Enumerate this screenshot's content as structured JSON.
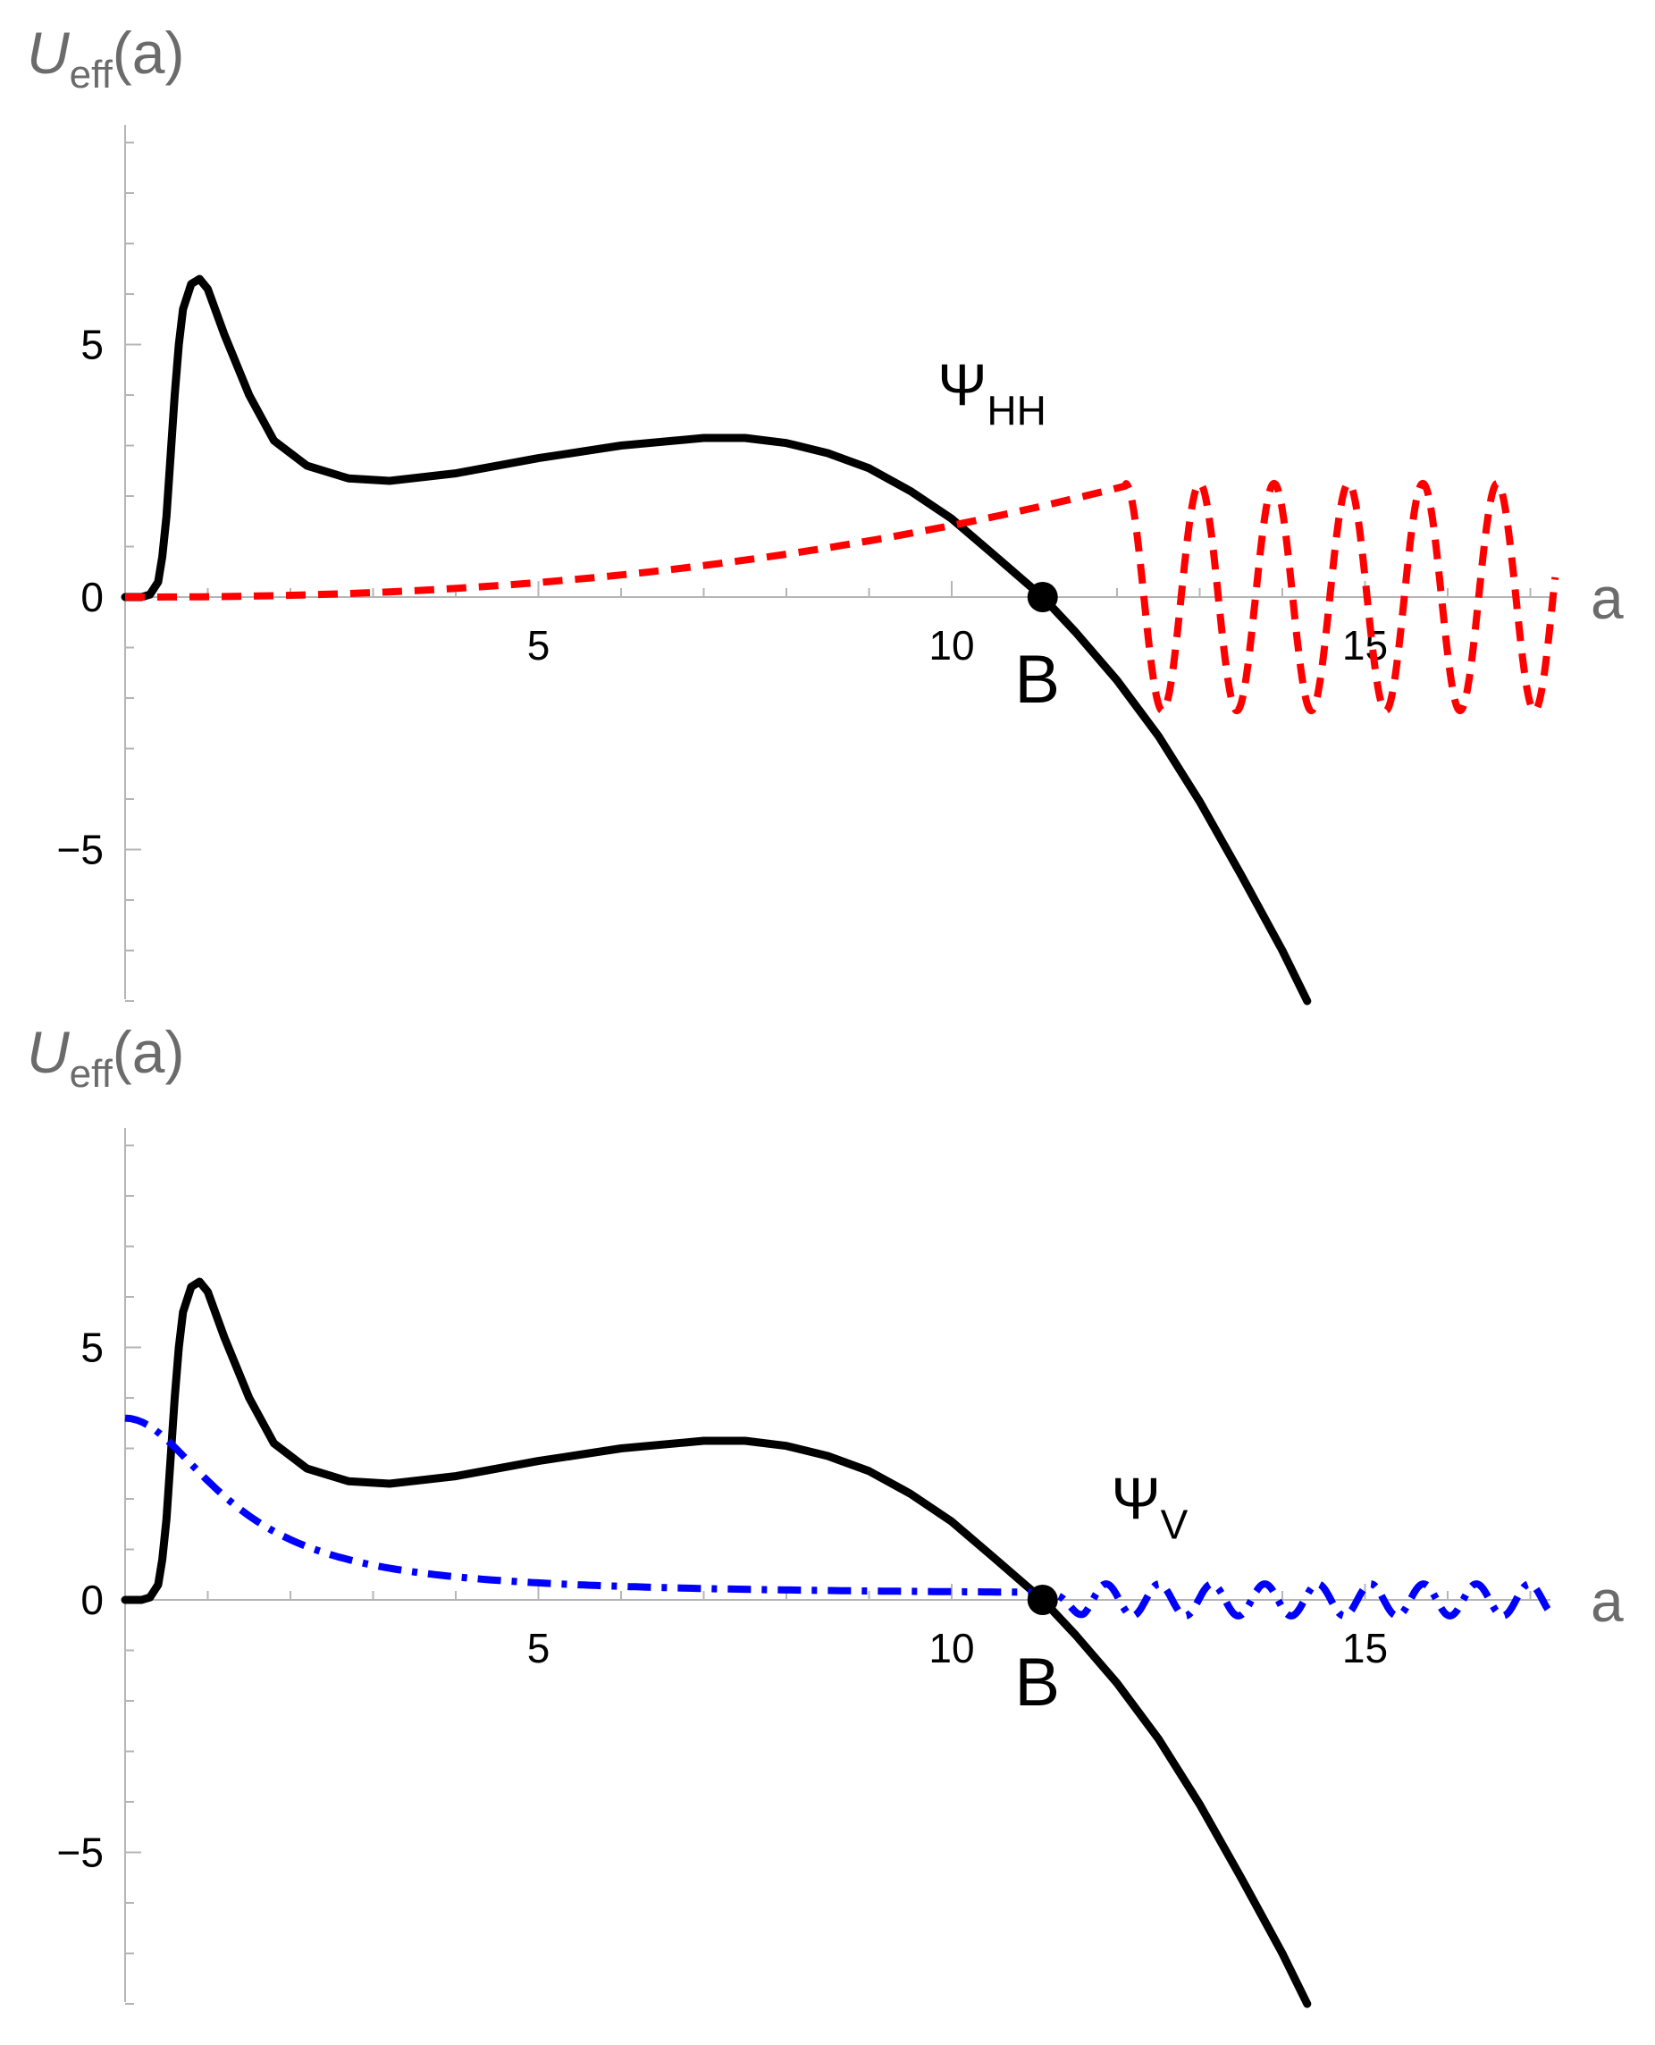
{
  "chart_data": [
    {
      "type": "line",
      "ylabel": {
        "main": "U",
        "sub": "eff",
        "suffix": "(a)"
      },
      "xlabel": "a",
      "xlim": [
        0,
        17.6
      ],
      "ylim": [
        -8,
        9.5
      ],
      "xticks": [
        5,
        10,
        15
      ],
      "yticks": [
        -5,
        0,
        5
      ],
      "xtick_labels": [
        "5",
        "10",
        "15"
      ],
      "ytick_labels": [
        "−5",
        "0",
        "5"
      ],
      "marker": {
        "label": "B",
        "x": 11.1,
        "y": 0
      },
      "wave_label": {
        "main": "Ψ",
        "sub": "HH",
        "x": 12.1,
        "y": 3.8
      },
      "series": [
        {
          "kind": "potential",
          "color": "#000000",
          "style": "solid",
          "points": [
            [
              0,
              0
            ],
            [
              0.2,
              0
            ],
            [
              0.3,
              0.05
            ],
            [
              0.4,
              0.3
            ],
            [
              0.45,
              0.8
            ],
            [
              0.5,
              1.6
            ],
            [
              0.55,
              2.8
            ],
            [
              0.6,
              4.0
            ],
            [
              0.65,
              5.0
            ],
            [
              0.7,
              5.7
            ],
            [
              0.8,
              6.2
            ],
            [
              0.9,
              6.3
            ],
            [
              1.0,
              6.1
            ],
            [
              1.2,
              5.2
            ],
            [
              1.5,
              4.0
            ],
            [
              1.8,
              3.1
            ],
            [
              2.2,
              2.6
            ],
            [
              2.7,
              2.35
            ],
            [
              3.2,
              2.3
            ],
            [
              4,
              2.45
            ],
            [
              5,
              2.75
            ],
            [
              6,
              3.0
            ],
            [
              7,
              3.15
            ],
            [
              7.5,
              3.15
            ],
            [
              8,
              3.05
            ],
            [
              8.5,
              2.85
            ],
            [
              9,
              2.55
            ],
            [
              9.5,
              2.1
            ],
            [
              10,
              1.55
            ],
            [
              10.5,
              0.85
            ],
            [
              11.1,
              0
            ],
            [
              11.5,
              -0.7
            ],
            [
              12,
              -1.65
            ],
            [
              12.5,
              -2.75
            ],
            [
              13,
              -4.05
            ],
            [
              13.5,
              -5.5
            ],
            [
              14,
              -7.0
            ],
            [
              14.3,
              -8.0
            ]
          ]
        },
        {
          "kind": "wavefunction",
          "color": "#ff0000",
          "style": "dashed",
          "growth": {
            "x_start": 0,
            "x_end": 12.1,
            "y_end": 2.2,
            "power": 2.3
          },
          "oscillation": {
            "x_start": 12.1,
            "x_end": 17.3,
            "amplitude": 2.25,
            "half_period": 0.45
          }
        }
      ]
    },
    {
      "type": "line",
      "ylabel": {
        "main": "U",
        "sub": "eff",
        "suffix": "(a)"
      },
      "xlabel": "a",
      "xlim": [
        0,
        17.6
      ],
      "ylim": [
        -8,
        9.5
      ],
      "xticks": [
        5,
        10,
        15
      ],
      "yticks": [
        -5,
        0,
        5
      ],
      "xtick_labels": [
        "5",
        "10",
        "15"
      ],
      "ytick_labels": [
        "−5",
        "0",
        "5"
      ],
      "marker": {
        "label": "B",
        "x": 11.1,
        "y": 0
      },
      "wave_label": {
        "main": "Ψ",
        "sub": "V",
        "x": 14.2,
        "y": 1.6
      },
      "series": [
        {
          "kind": "potential",
          "color": "#000000",
          "style": "solid",
          "points": [
            [
              0,
              0
            ],
            [
              0.2,
              0
            ],
            [
              0.3,
              0.05
            ],
            [
              0.4,
              0.3
            ],
            [
              0.45,
              0.8
            ],
            [
              0.5,
              1.6
            ],
            [
              0.55,
              2.8
            ],
            [
              0.6,
              4.0
            ],
            [
              0.65,
              5.0
            ],
            [
              0.7,
              5.7
            ],
            [
              0.8,
              6.2
            ],
            [
              0.9,
              6.3
            ],
            [
              1.0,
              6.1
            ],
            [
              1.2,
              5.2
            ],
            [
              1.5,
              4.0
            ],
            [
              1.8,
              3.1
            ],
            [
              2.2,
              2.6
            ],
            [
              2.7,
              2.35
            ],
            [
              3.2,
              2.3
            ],
            [
              4,
              2.45
            ],
            [
              5,
              2.75
            ],
            [
              6,
              3.0
            ],
            [
              7,
              3.15
            ],
            [
              7.5,
              3.15
            ],
            [
              8,
              3.05
            ],
            [
              8.5,
              2.85
            ],
            [
              9,
              2.55
            ],
            [
              9.5,
              2.1
            ],
            [
              10,
              1.55
            ],
            [
              10.5,
              0.85
            ],
            [
              11.1,
              0
            ],
            [
              11.5,
              -0.7
            ],
            [
              12,
              -1.65
            ],
            [
              12.5,
              -2.75
            ],
            [
              13,
              -4.05
            ],
            [
              13.5,
              -5.5
            ],
            [
              14,
              -7.0
            ],
            [
              14.3,
              -8.0
            ]
          ]
        },
        {
          "kind": "wavefunction",
          "color": "#0000ff",
          "style": "dashdot",
          "decay": {
            "x_start": 0,
            "x_end": 11.1,
            "y_start": 3.6,
            "y_end": 0.1
          },
          "oscillation": {
            "x_start": 11.1,
            "x_end": 17.3,
            "amplitude": 0.3,
            "half_period": 0.32
          }
        }
      ]
    }
  ]
}
